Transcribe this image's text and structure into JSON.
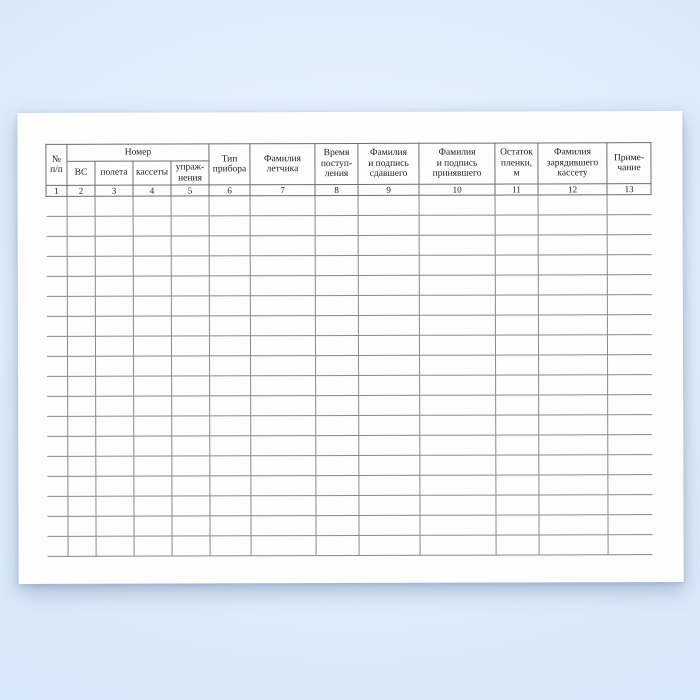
{
  "document": {
    "language": "ru",
    "kind": "blank-journal-table-form"
  },
  "colors": {
    "page_background_blue": "#d9e9fb",
    "paper_white": "#fdfdfe",
    "header_line_gray": "#6e6e6e",
    "body_line_gray": "#8a8a8a",
    "text_color": "#222222"
  },
  "table": {
    "header": {
      "c1": "№\nп/п",
      "group_label": "Номер",
      "g1": "ВС",
      "g2": "полета",
      "g3": "кассеты",
      "g4": "упраж-\nнения",
      "c6": "Тип\nприбора",
      "c7": "Фамилия\nлетчика",
      "c8": "Время\nпоступ-\nления",
      "c9": "Фамилия\nи подпись\nсдавшего",
      "c10": "Фамилия\nи подпись\nпринявшего",
      "c11": "Остаток\nпленки,\nм",
      "c12": "Фамилия\nзарядившего\nкассету",
      "c13": "Приме-\nчание"
    },
    "column_numbers": [
      "1",
      "2",
      "3",
      "4",
      "5",
      "6",
      "7",
      "8",
      "9",
      "10",
      "11",
      "12",
      "13"
    ],
    "body_row_count": 18,
    "column_count": 13
  }
}
